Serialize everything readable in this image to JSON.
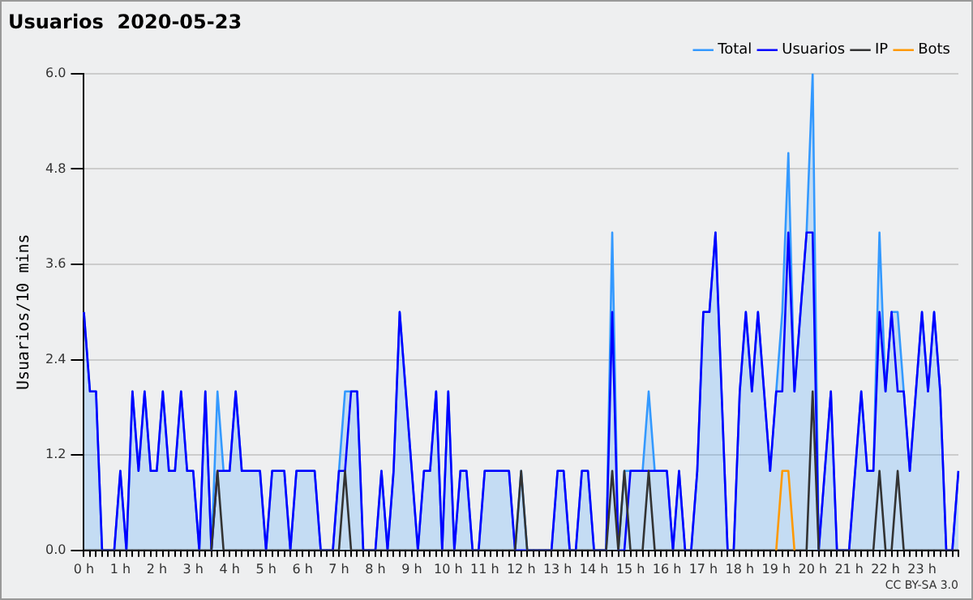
{
  "chart_data": {
    "type": "line",
    "title": "Usuarios  2020-05-23",
    "ylabel": "Usuarios/10 mins",
    "annotations": [
      "CC BY-SA 3.0"
    ],
    "categories": [
      "0 h",
      null,
      null,
      null,
      null,
      null,
      "1 h",
      null,
      null,
      null,
      null,
      null,
      "2 h",
      null,
      null,
      null,
      null,
      null,
      "3 h",
      null,
      null,
      null,
      null,
      null,
      "4 h",
      null,
      null,
      null,
      null,
      null,
      "5 h",
      null,
      null,
      null,
      null,
      null,
      "6 h",
      null,
      null,
      null,
      null,
      null,
      "7 h",
      null,
      null,
      null,
      null,
      null,
      "8 h",
      null,
      null,
      null,
      null,
      null,
      "9 h",
      null,
      null,
      null,
      null,
      null,
      "10 h",
      null,
      null,
      null,
      null,
      null,
      "11 h",
      null,
      null,
      null,
      null,
      null,
      "12 h",
      null,
      null,
      null,
      null,
      null,
      "13 h",
      null,
      null,
      null,
      null,
      null,
      "14 h",
      null,
      null,
      null,
      null,
      null,
      "15 h",
      null,
      null,
      null,
      null,
      null,
      "16 h",
      null,
      null,
      null,
      null,
      null,
      "17 h",
      null,
      null,
      null,
      null,
      null,
      "18 h",
      null,
      null,
      null,
      null,
      null,
      "19 h",
      null,
      null,
      null,
      null,
      null,
      "20 h",
      null,
      null,
      null,
      null,
      null,
      "21 h",
      null,
      null,
      null,
      null,
      null,
      "22 h",
      null,
      null,
      null,
      null,
      null,
      "23 h",
      null,
      null,
      null,
      null,
      null,
      null
    ],
    "ylim": [
      0,
      6
    ],
    "yticks": [
      {
        "value": 0,
        "label": "0.0"
      },
      {
        "value": 1.2,
        "label": "1.2"
      },
      {
        "value": 2.4,
        "label": "2.4"
      },
      {
        "value": 3.6,
        "label": "3.6"
      },
      {
        "value": 4.8,
        "label": "4.8"
      },
      {
        "value": 6,
        "label": "6.0"
      }
    ],
    "grid": "y",
    "legend": "top right",
    "marker": "none",
    "series": [
      {
        "name": "Total",
        "type": "area",
        "color": "#3399ff",
        "values": [
          3,
          2,
          2,
          0,
          0,
          0,
          1,
          0,
          2,
          1,
          2,
          1,
          1,
          2,
          1,
          1,
          2,
          1,
          1,
          0,
          2,
          0,
          2,
          1,
          1,
          2,
          1,
          1,
          1,
          1,
          0,
          1,
          1,
          1,
          0,
          1,
          1,
          1,
          1,
          0,
          0,
          0,
          1,
          2,
          2,
          2,
          0,
          0,
          0,
          1,
          0,
          1,
          3,
          2,
          1,
          0,
          1,
          1,
          2,
          0,
          2,
          0,
          1,
          1,
          0,
          0,
          1,
          1,
          1,
          1,
          1,
          0,
          1,
          0,
          0,
          0,
          0,
          0,
          1,
          1,
          0,
          0,
          1,
          1,
          0,
          0,
          0,
          4,
          0,
          1,
          1,
          1,
          1,
          2,
          1,
          1,
          1,
          0,
          1,
          0,
          0,
          1,
          3,
          3,
          4,
          2,
          0,
          0,
          2,
          3,
          2,
          3,
          2,
          1,
          2,
          3,
          5,
          2,
          3,
          4,
          6,
          0,
          1,
          2,
          0,
          0,
          0,
          1,
          2,
          1,
          1,
          4,
          2,
          3,
          3,
          2,
          1,
          2,
          3,
          2,
          3,
          2,
          0,
          0,
          1
        ]
      },
      {
        "name": "Usuarios",
        "type": "line",
        "color": "#0000ff",
        "values": [
          3,
          2,
          2,
          0,
          0,
          0,
          1,
          0,
          2,
          1,
          2,
          1,
          1,
          2,
          1,
          1,
          2,
          1,
          1,
          0,
          2,
          0,
          1,
          1,
          1,
          2,
          1,
          1,
          1,
          1,
          0,
          1,
          1,
          1,
          0,
          1,
          1,
          1,
          1,
          0,
          0,
          0,
          1,
          1,
          2,
          2,
          0,
          0,
          0,
          1,
          0,
          1,
          3,
          2,
          1,
          0,
          1,
          1,
          2,
          0,
          2,
          0,
          1,
          1,
          0,
          0,
          1,
          1,
          1,
          1,
          1,
          0,
          0,
          0,
          0,
          0,
          0,
          0,
          1,
          1,
          0,
          0,
          1,
          1,
          0,
          0,
          0,
          3,
          0,
          0,
          1,
          1,
          1,
          1,
          1,
          1,
          1,
          0,
          1,
          0,
          0,
          1,
          3,
          3,
          4,
          2,
          0,
          0,
          2,
          3,
          2,
          3,
          2,
          1,
          2,
          2,
          4,
          2,
          3,
          4,
          4,
          0,
          1,
          2,
          0,
          0,
          0,
          1,
          2,
          1,
          1,
          3,
          2,
          3,
          2,
          2,
          1,
          2,
          3,
          2,
          3,
          2,
          0,
          0,
          1
        ]
      },
      {
        "name": "IP",
        "type": "line",
        "color": "#333333",
        "values": [
          0,
          0,
          0,
          0,
          0,
          0,
          0,
          0,
          0,
          0,
          0,
          0,
          0,
          0,
          0,
          0,
          0,
          0,
          0,
          0,
          0,
          0,
          1,
          0,
          0,
          0,
          0,
          0,
          0,
          0,
          0,
          0,
          0,
          0,
          0,
          0,
          0,
          0,
          0,
          0,
          0,
          0,
          0,
          1,
          0,
          0,
          0,
          0,
          0,
          0,
          0,
          0,
          0,
          0,
          0,
          0,
          0,
          0,
          0,
          0,
          0,
          0,
          0,
          0,
          0,
          0,
          0,
          0,
          0,
          0,
          0,
          0,
          1,
          0,
          0,
          0,
          0,
          0,
          0,
          0,
          0,
          0,
          0,
          0,
          0,
          0,
          0,
          1,
          0,
          1,
          0,
          0,
          0,
          1,
          0,
          0,
          0,
          0,
          0,
          0,
          0,
          0,
          0,
          0,
          0,
          0,
          0,
          0,
          0,
          0,
          0,
          0,
          0,
          0,
          0,
          0,
          0,
          0,
          0,
          0,
          2,
          0,
          0,
          0,
          0,
          0,
          0,
          0,
          0,
          0,
          0,
          1,
          0,
          0,
          1,
          0,
          0,
          0,
          0,
          0,
          0,
          0,
          0,
          0,
          0
        ]
      },
      {
        "name": "Bots",
        "type": "line",
        "color": "#ff9900",
        "values": [
          null,
          null,
          null,
          null,
          null,
          null,
          null,
          null,
          null,
          null,
          null,
          null,
          null,
          null,
          null,
          null,
          null,
          null,
          null,
          null,
          null,
          null,
          null,
          null,
          null,
          null,
          null,
          null,
          null,
          null,
          null,
          null,
          null,
          null,
          null,
          null,
          null,
          null,
          null,
          null,
          null,
          null,
          null,
          null,
          null,
          null,
          null,
          null,
          null,
          null,
          null,
          null,
          null,
          null,
          null,
          null,
          null,
          null,
          null,
          null,
          null,
          null,
          null,
          null,
          null,
          null,
          null,
          null,
          null,
          null,
          null,
          null,
          null,
          null,
          null,
          null,
          null,
          null,
          null,
          null,
          null,
          null,
          null,
          null,
          null,
          null,
          null,
          null,
          null,
          null,
          null,
          null,
          null,
          null,
          null,
          null,
          null,
          null,
          null,
          null,
          null,
          null,
          null,
          null,
          null,
          null,
          null,
          null,
          null,
          null,
          null,
          null,
          null,
          null,
          0,
          1,
          1,
          0,
          null,
          null,
          null,
          null,
          null,
          null,
          null,
          null,
          null,
          null,
          null,
          null,
          null,
          null,
          null,
          null,
          null,
          null,
          null,
          null,
          null,
          null,
          null,
          null,
          null,
          null,
          null
        ]
      }
    ]
  }
}
